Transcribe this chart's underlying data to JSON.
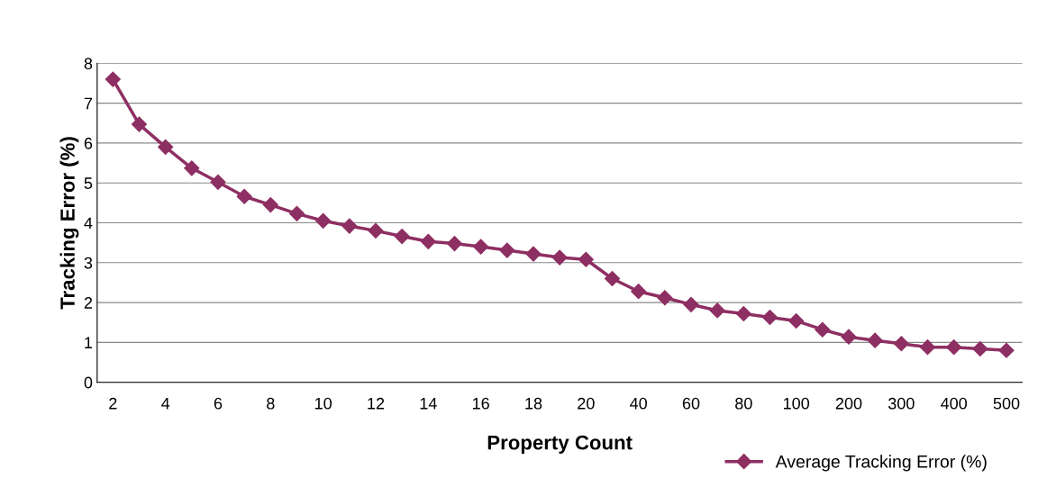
{
  "chart_data": {
    "type": "line",
    "xlabel": "Property Count",
    "ylabel": "Tracking Error (%)",
    "categories": [
      "2",
      null,
      "4",
      null,
      "6",
      null,
      "8",
      null,
      "10",
      null,
      "12",
      null,
      "14",
      null,
      "16",
      null,
      "18",
      null,
      "20",
      null,
      "40",
      null,
      "60",
      null,
      "80",
      null,
      "100",
      null,
      "200",
      null,
      "300",
      null,
      "400",
      null,
      "500"
    ],
    "series": [
      {
        "name": "Average Tracking Error (%)",
        "color": "#8e2f63",
        "values": [
          7.6,
          6.47,
          5.9,
          5.37,
          5.02,
          4.66,
          4.45,
          4.23,
          4.05,
          3.92,
          3.8,
          3.66,
          3.53,
          3.48,
          3.4,
          3.31,
          3.22,
          3.13,
          3.08,
          2.6,
          2.28,
          2.12,
          1.95,
          1.8,
          1.72,
          1.63,
          1.54,
          1.32,
          1.14,
          1.05,
          0.97,
          0.88,
          0.88,
          0.84,
          0.8
        ]
      }
    ],
    "ylim": [
      0,
      8
    ],
    "yticks": [
      0,
      1,
      2,
      3,
      4,
      5,
      6,
      7,
      8
    ],
    "grid": "y",
    "legend": "bottom right",
    "marker": "diamond",
    "line_style": "solid"
  }
}
